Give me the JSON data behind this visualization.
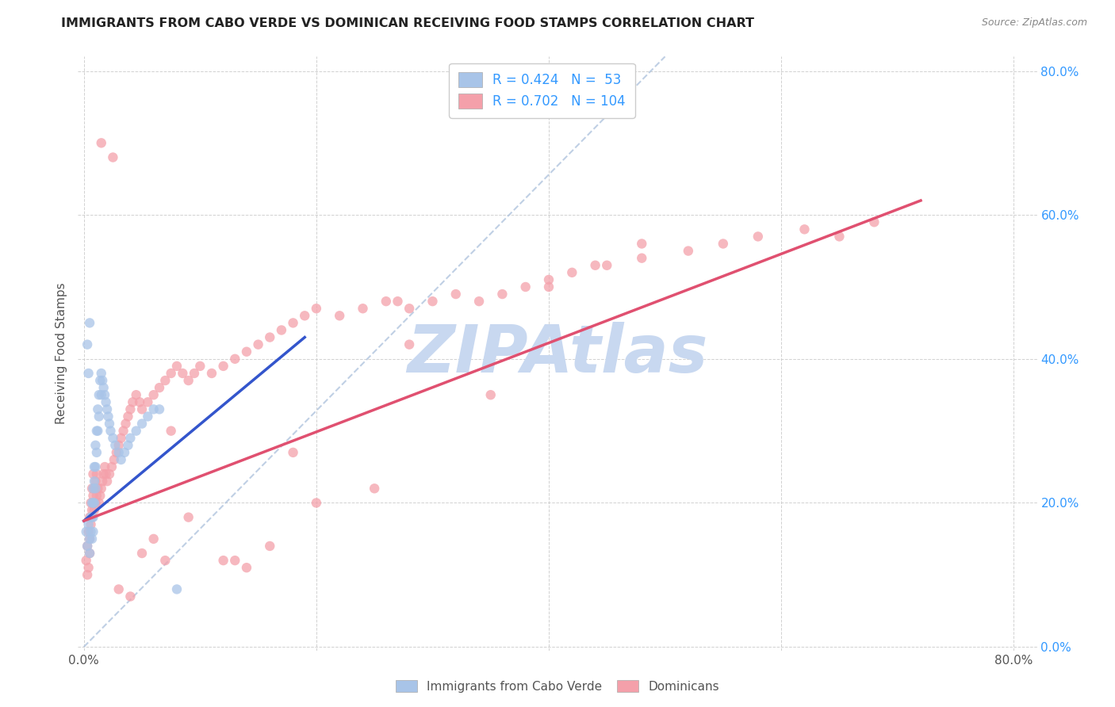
{
  "title": "IMMIGRANTS FROM CABO VERDE VS DOMINICAN RECEIVING FOOD STAMPS CORRELATION CHART",
  "source": "Source: ZipAtlas.com",
  "ylabel": "Receiving Food Stamps",
  "xlim": [
    -0.005,
    0.82
  ],
  "ylim": [
    -0.005,
    0.82
  ],
  "xtick_vals": [
    0.0,
    0.2,
    0.4,
    0.6,
    0.8
  ],
  "ytick_vals": [
    0.0,
    0.2,
    0.4,
    0.6,
    0.8
  ],
  "cabo_verde_R": 0.424,
  "cabo_verde_N": 53,
  "dominican_R": 0.702,
  "dominican_N": 104,
  "cabo_verde_color": "#a8c4e8",
  "dominican_color": "#f4a0aa",
  "cabo_verde_line_color": "#3355cc",
  "dominican_line_color": "#e05070",
  "dashed_line_color": "#b0c4de",
  "right_axis_color": "#3399ff",
  "watermark": "ZIPAtlas",
  "watermark_color": "#c8d8f0",
  "cabo_verde_line_x": [
    0.0,
    0.19
  ],
  "cabo_verde_line_y": [
    0.175,
    0.43
  ],
  "dominican_line_x": [
    0.0,
    0.72
  ],
  "dominican_line_y": [
    0.175,
    0.62
  ],
  "dashed_line_x": [
    0.0,
    0.5
  ],
  "dashed_line_y": [
    0.0,
    0.82
  ],
  "cabo_verde_scatter_x": [
    0.002,
    0.003,
    0.004,
    0.005,
    0.005,
    0.006,
    0.006,
    0.007,
    0.007,
    0.007,
    0.008,
    0.008,
    0.008,
    0.008,
    0.009,
    0.009,
    0.009,
    0.01,
    0.01,
    0.01,
    0.011,
    0.011,
    0.012,
    0.012,
    0.013,
    0.013,
    0.014,
    0.015,
    0.015,
    0.016,
    0.017,
    0.018,
    0.019,
    0.02,
    0.021,
    0.022,
    0.023,
    0.025,
    0.027,
    0.03,
    0.032,
    0.035,
    0.038,
    0.04,
    0.045,
    0.05,
    0.055,
    0.06,
    0.003,
    0.004,
    0.005,
    0.065,
    0.08
  ],
  "cabo_verde_scatter_y": [
    0.16,
    0.14,
    0.17,
    0.15,
    0.13,
    0.18,
    0.16,
    0.2,
    0.18,
    0.15,
    0.22,
    0.2,
    0.18,
    0.16,
    0.25,
    0.23,
    0.2,
    0.28,
    0.25,
    0.22,
    0.3,
    0.27,
    0.33,
    0.3,
    0.35,
    0.32,
    0.37,
    0.38,
    0.35,
    0.37,
    0.36,
    0.35,
    0.34,
    0.33,
    0.32,
    0.31,
    0.3,
    0.29,
    0.28,
    0.27,
    0.26,
    0.27,
    0.28,
    0.29,
    0.3,
    0.31,
    0.32,
    0.33,
    0.42,
    0.38,
    0.45,
    0.33,
    0.08
  ],
  "dominican_scatter_x": [
    0.002,
    0.003,
    0.003,
    0.004,
    0.004,
    0.005,
    0.005,
    0.005,
    0.006,
    0.006,
    0.007,
    0.007,
    0.008,
    0.008,
    0.009,
    0.009,
    0.01,
    0.01,
    0.011,
    0.011,
    0.012,
    0.013,
    0.014,
    0.015,
    0.016,
    0.017,
    0.018,
    0.019,
    0.02,
    0.022,
    0.024,
    0.026,
    0.028,
    0.03,
    0.032,
    0.034,
    0.036,
    0.038,
    0.04,
    0.042,
    0.045,
    0.048,
    0.05,
    0.055,
    0.06,
    0.065,
    0.07,
    0.075,
    0.08,
    0.085,
    0.09,
    0.095,
    0.1,
    0.11,
    0.12,
    0.13,
    0.14,
    0.15,
    0.16,
    0.17,
    0.18,
    0.19,
    0.2,
    0.22,
    0.24,
    0.26,
    0.28,
    0.3,
    0.32,
    0.34,
    0.36,
    0.38,
    0.4,
    0.42,
    0.45,
    0.48,
    0.52,
    0.55,
    0.58,
    0.62,
    0.65,
    0.68,
    0.35,
    0.27,
    0.18,
    0.16,
    0.14,
    0.12,
    0.4,
    0.44,
    0.48,
    0.06,
    0.07,
    0.28,
    0.2,
    0.25,
    0.03,
    0.09,
    0.13,
    0.04,
    0.05,
    0.075,
    0.015,
    0.025
  ],
  "dominican_scatter_y": [
    0.12,
    0.1,
    0.14,
    0.11,
    0.16,
    0.13,
    0.18,
    0.15,
    0.2,
    0.17,
    0.22,
    0.19,
    0.24,
    0.21,
    0.22,
    0.19,
    0.23,
    0.2,
    0.24,
    0.21,
    0.22,
    0.2,
    0.21,
    0.22,
    0.23,
    0.24,
    0.25,
    0.24,
    0.23,
    0.24,
    0.25,
    0.26,
    0.27,
    0.28,
    0.29,
    0.3,
    0.31,
    0.32,
    0.33,
    0.34,
    0.35,
    0.34,
    0.33,
    0.34,
    0.35,
    0.36,
    0.37,
    0.38,
    0.39,
    0.38,
    0.37,
    0.38,
    0.39,
    0.38,
    0.39,
    0.4,
    0.41,
    0.42,
    0.43,
    0.44,
    0.45,
    0.46,
    0.47,
    0.46,
    0.47,
    0.48,
    0.47,
    0.48,
    0.49,
    0.48,
    0.49,
    0.5,
    0.51,
    0.52,
    0.53,
    0.54,
    0.55,
    0.56,
    0.57,
    0.58,
    0.57,
    0.59,
    0.35,
    0.48,
    0.27,
    0.14,
    0.11,
    0.12,
    0.5,
    0.53,
    0.56,
    0.15,
    0.12,
    0.42,
    0.2,
    0.22,
    0.08,
    0.18,
    0.12,
    0.07,
    0.13,
    0.3,
    0.7,
    0.68
  ]
}
